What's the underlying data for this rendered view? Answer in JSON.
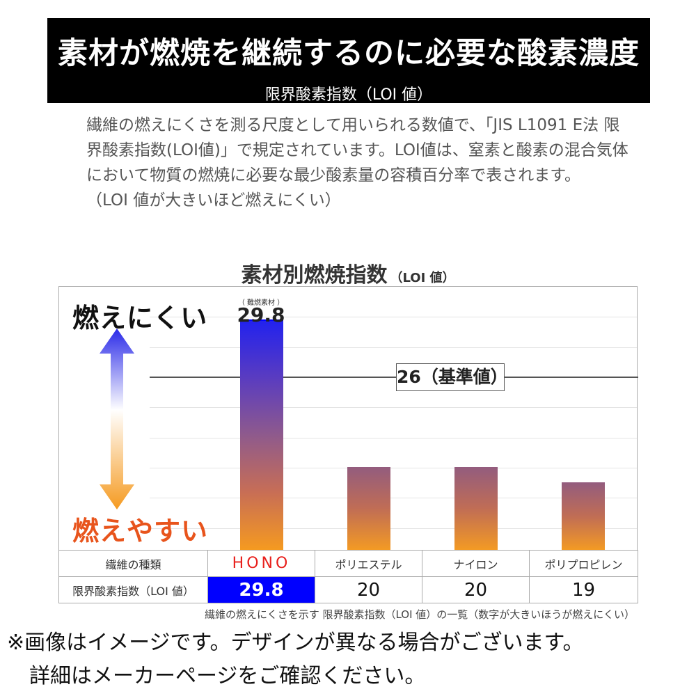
{
  "header": {
    "title": "素材が燃焼を継続するのに必要な酸素濃度",
    "subtitle": "限界酸素指数（LOI 値）"
  },
  "description": {
    "lines": [
      "繊維の燃えにくさを測る尺度として用いられる数値で、「JIS L1091 E法 限",
      "界酸素指数(LOI値)」で規定されています。LOI値は、窒素と酸素の混合気体",
      "において物質の燃焼に必要な最少酸素量の容積百分率で表されます。",
      "（LOI 値が大きいほど燃えにくい）"
    ]
  },
  "chart_data": {
    "type": "bar",
    "title": "素材別燃焼指数",
    "title_unit": "（LOI 値）",
    "categories": [
      "HONO",
      "ポリエステル",
      "ナイロン",
      "ポリプロピレン"
    ],
    "values": [
      29.8,
      20,
      20,
      19
    ],
    "ylim": [
      14.5,
      32
    ],
    "grid": true,
    "reference_line": {
      "value": 26,
      "label": "26（基準値）"
    },
    "highlight": {
      "index": 0,
      "small_label": "（ 難燃素材 ）",
      "value_label": "29.8"
    },
    "axis_top_label": "燃えにくい",
    "axis_bottom_label": "燃えやすい",
    "colors": {
      "highlight_top": "#2222ee",
      "bar_top": "#935c7e",
      "bar_bottom": "#f39a24",
      "table_highlight": "#0000ff"
    }
  },
  "table": {
    "row_name_header": "繊維の種類",
    "row_loi_header": "限界酸素指数（LOI 値）",
    "names": [
      "HONO",
      "ポリエステル",
      "ナイロン",
      "ポリプロピレン"
    ],
    "values": [
      "29.8",
      "20",
      "20",
      "19"
    ]
  },
  "caption": "繊維の燃えにくさを示す 限界酸素指数（LOI 値）の一覧（数字が大きいほうが燃えにくい）",
  "notice": {
    "line1": "※画像はイメージです。デザインが異なる場合がございます。",
    "line2": "詳細はメーカーページをご確認ください。"
  }
}
